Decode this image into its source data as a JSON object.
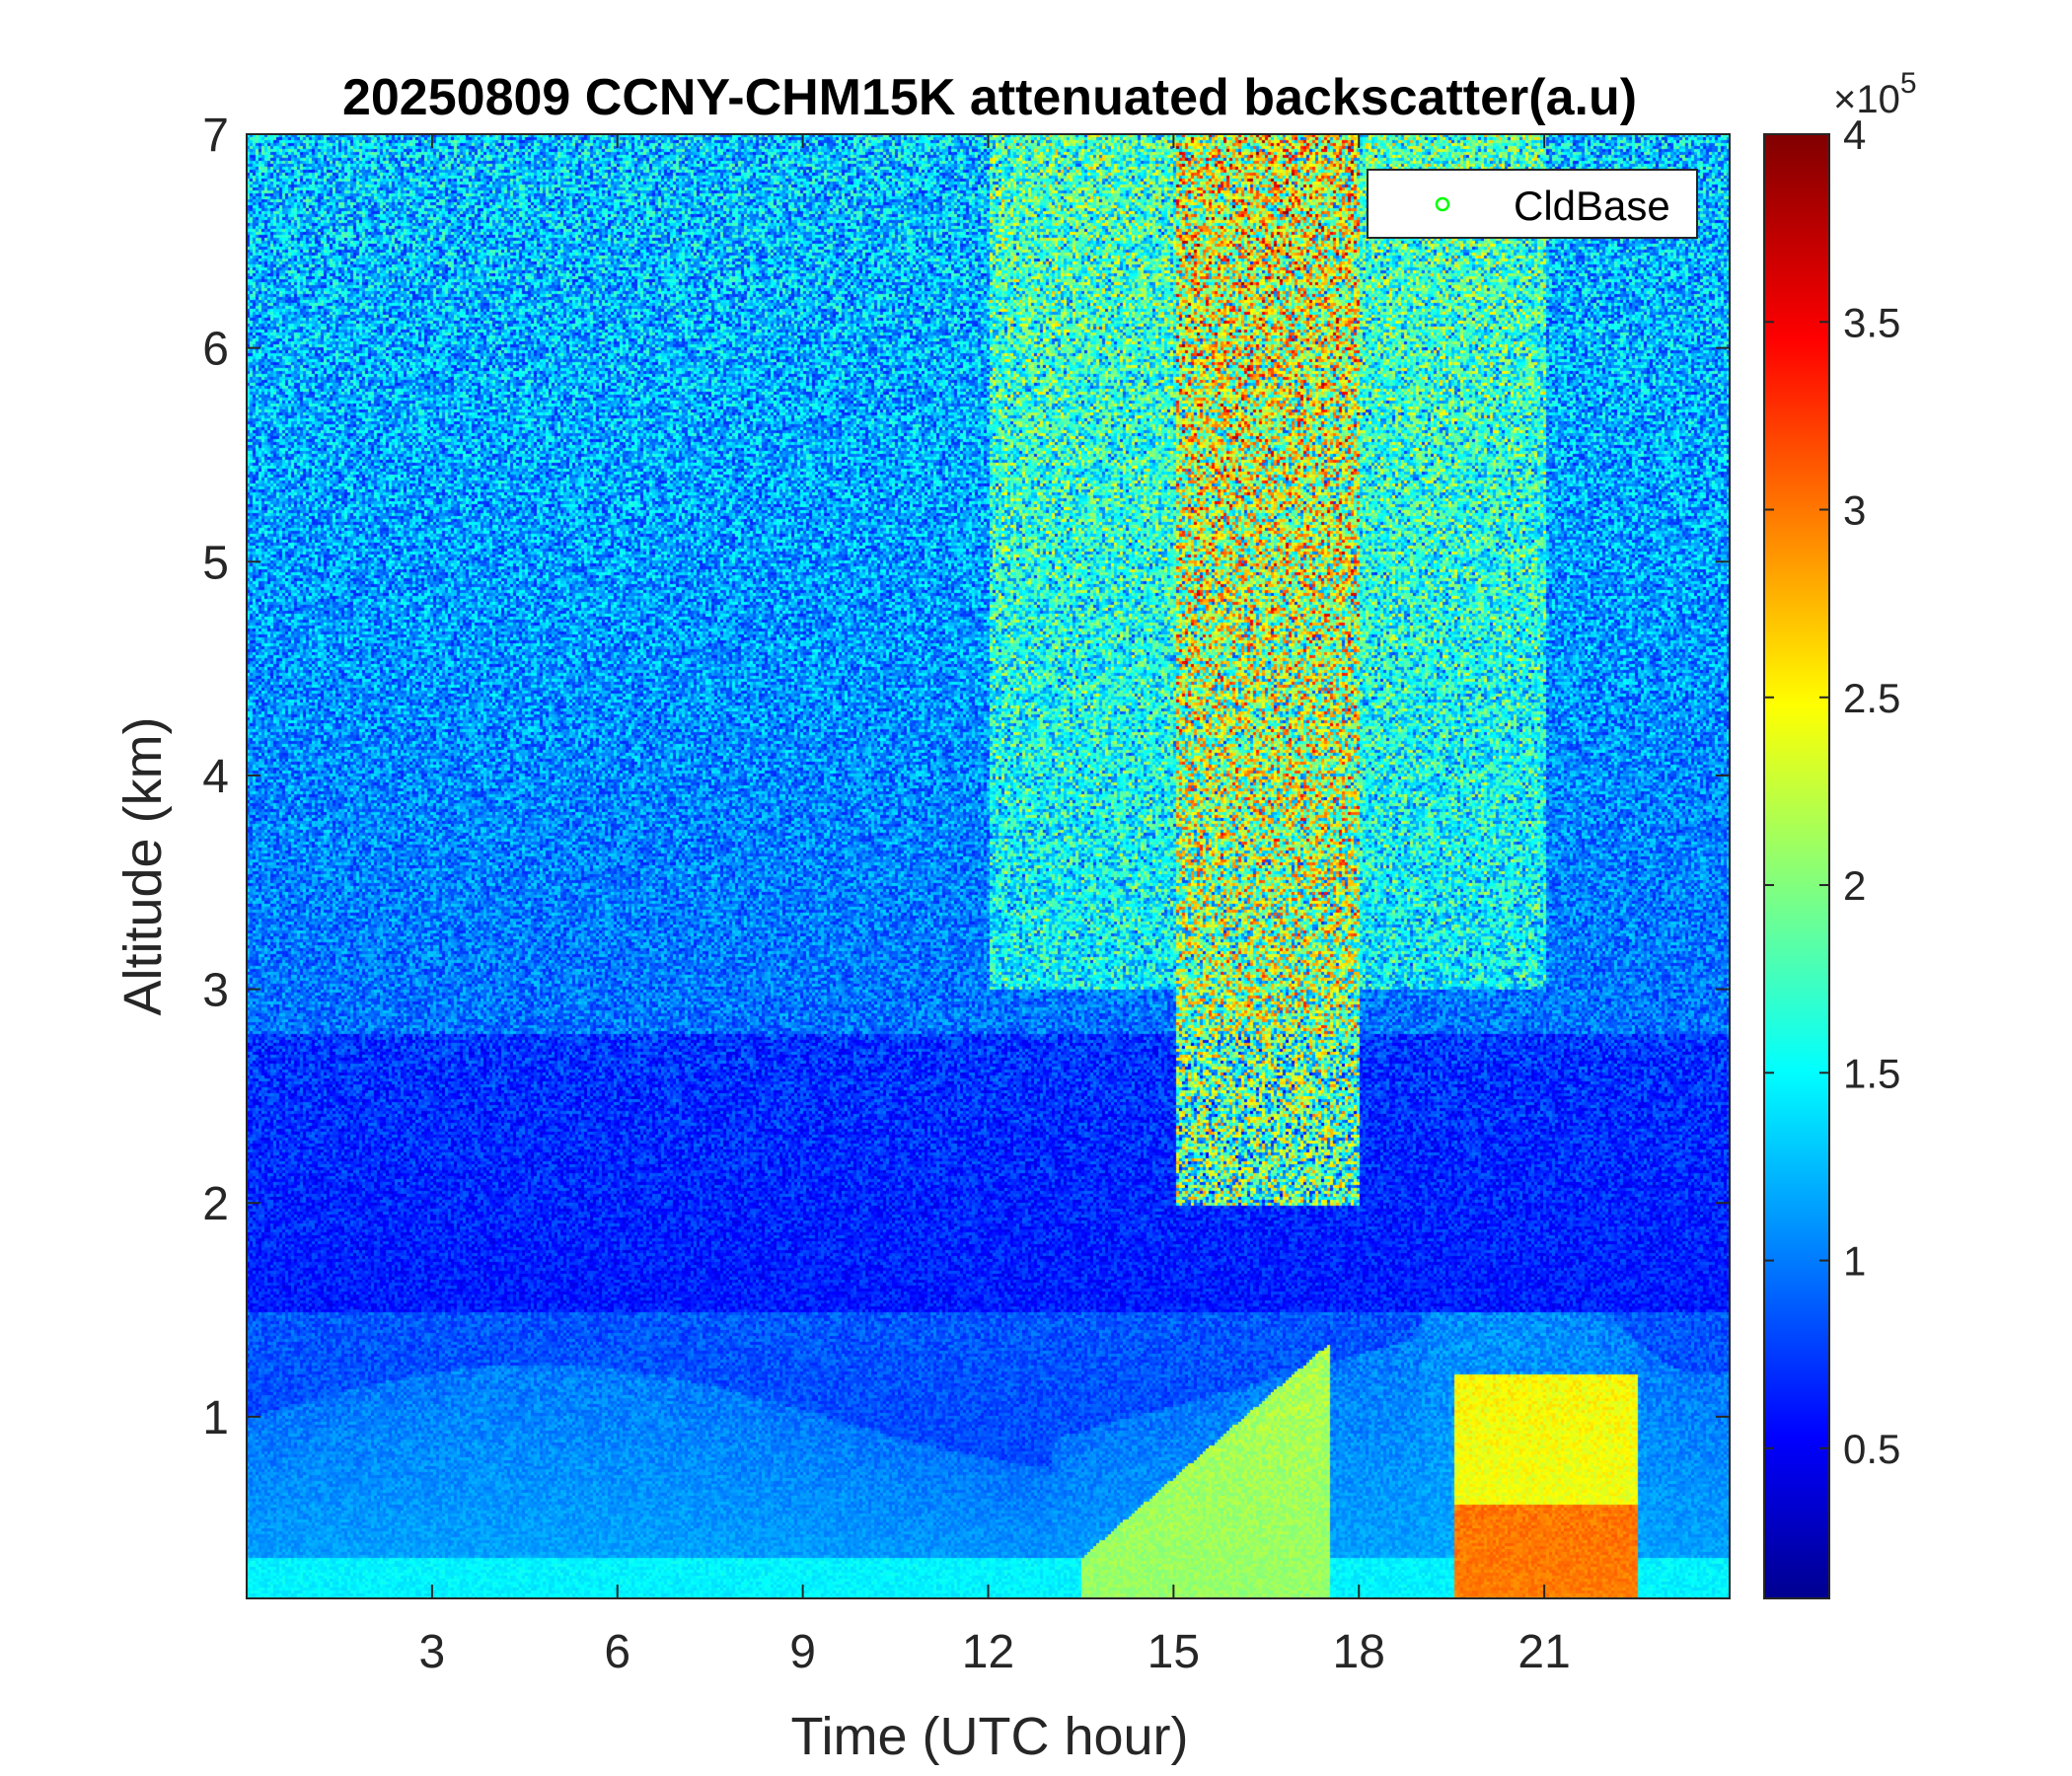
{
  "chart_data": {
    "type": "heatmap",
    "title": "20250809 CCNY-CHM15K attenuated backscatter(a.u)",
    "xlabel": "Time (UTC hour)",
    "ylabel": "Altitude (km)",
    "xlim": [
      0,
      24
    ],
    "ylim": [
      0.15,
      7
    ],
    "x_ticks": [
      "3",
      "6",
      "9",
      "12",
      "15",
      "18",
      "21"
    ],
    "y_ticks": [
      "1",
      "2",
      "3",
      "4",
      "5",
      "6",
      "7"
    ],
    "colormap": "jet",
    "colorbar": {
      "clim": [
        0.1,
        4
      ],
      "ticks": [
        "0.5",
        "1",
        "1.5",
        "2",
        "2.5",
        "3",
        "3.5",
        "4"
      ],
      "multiplier_base": "×10",
      "multiplier_exp": "5"
    },
    "legend": {
      "entries": [
        {
          "label": "CldBase",
          "marker": "circle",
          "color": "#00ff00"
        }
      ],
      "placement": "top-right"
    },
    "grid": false,
    "cloud_base_points": []
  }
}
